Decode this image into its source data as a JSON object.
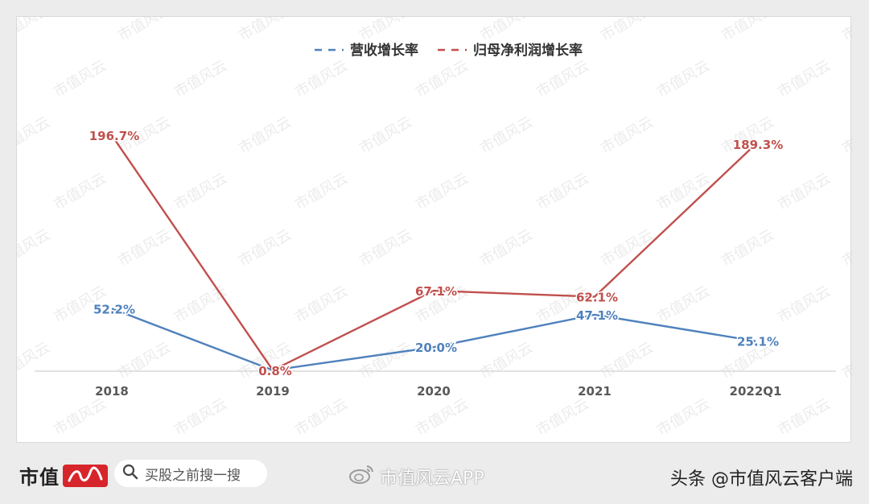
{
  "chart_data": {
    "type": "line",
    "categories": [
      "2018",
      "2019",
      "2020",
      "2021",
      "2022Q1"
    ],
    "series": [
      {
        "name": "营收增长率",
        "color": "#4f81bd",
        "values": [
          52.2,
          0.8,
          20.0,
          47.1,
          25.1
        ],
        "labels": [
          "52.2%",
          "0.8%",
          "20.0%",
          "47.1%",
          "25.1%"
        ]
      },
      {
        "name": "归母净利润增长率",
        "color": "#c0504d",
        "values": [
          196.7,
          0.8,
          67.1,
          62.1,
          189.3
        ],
        "labels": [
          "196.7%",
          "0.8%",
          "67.1%",
          "62.1%",
          "189.3%"
        ]
      }
    ],
    "ylim": [
      0,
      225
    ],
    "legend_position": "top-center",
    "grid": false
  },
  "watermark": "市值风云",
  "footer": {
    "brand": "市值",
    "search_placeholder": "买股之前搜一搜",
    "weibo_handle": "市值风云APP",
    "source_credit": "头条 @市值风云客户端"
  }
}
